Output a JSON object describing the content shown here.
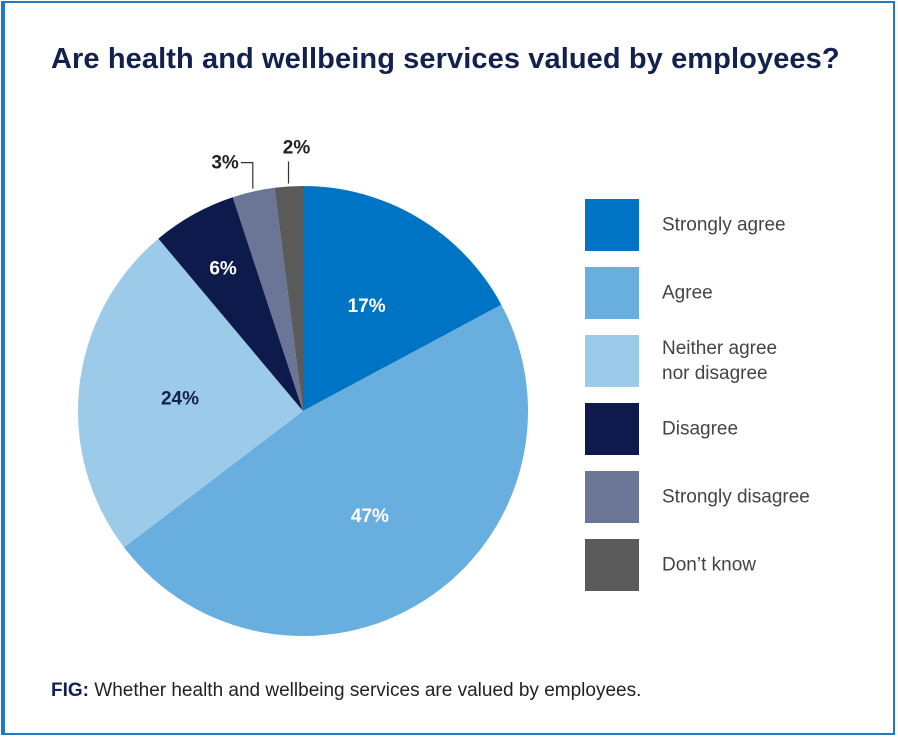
{
  "title": "Are health and wellbeing services valued by employees?",
  "caption": {
    "prefix": "FIG:",
    "text": "Whether health and wellbeing services are valued by employees."
  },
  "chart_data": {
    "type": "pie",
    "title": "Are health and wellbeing services valued by employees?",
    "unit": "%",
    "slices": [
      {
        "label": "Strongly agree",
        "value": 17,
        "display": "17%",
        "color": "#0074c4",
        "text_color": "#ffffff"
      },
      {
        "label": "Agree",
        "value": 47,
        "display": "47%",
        "color": "#68afdf",
        "text_color": "#ffffff"
      },
      {
        "label": "Neither agree\nnor disagree",
        "value": 24,
        "display": "24%",
        "color": "#9ccbea",
        "text_color": "#13214e"
      },
      {
        "label": "Disagree",
        "value": 6,
        "display": "6%",
        "color": "#0d1a4b",
        "text_color": "#ffffff"
      },
      {
        "label": "Strongly disagree",
        "value": 3,
        "display": "3%",
        "color": "#6b7595",
        "text_color": "#222222"
      },
      {
        "label": "Don’t know",
        "value": 2,
        "display": "2%",
        "color": "#5a5a5a",
        "text_color": "#222222"
      }
    ],
    "start_angle": "12 o'clock",
    "direction": "clockwise",
    "legend_position": "right"
  }
}
